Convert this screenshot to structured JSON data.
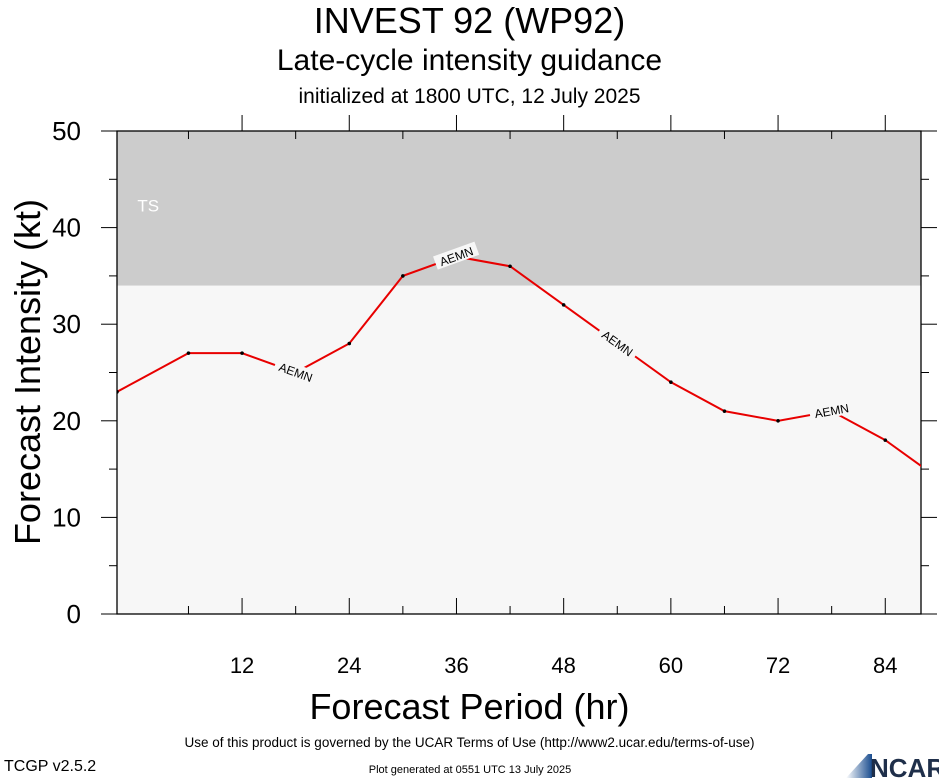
{
  "header": {
    "title": "INVEST 92 (WP92)",
    "subtitle": "Late-cycle intensity guidance",
    "initialized": "initialized at 1800 UTC, 12 July 2025"
  },
  "footer": {
    "terms": "Use of this product is governed by the UCAR Terms of Use (http://www2.ucar.edu/terms-of-use)",
    "generated": "Plot generated at 0551 UTC   13 July 2025",
    "version": "TCGP v2.5.2",
    "logo_text": "NCAR"
  },
  "colors": {
    "series": "#e80000",
    "ts_band": "#cccccc",
    "plot_bg": "#f7f7f7",
    "ts_label": "#ffffff"
  },
  "chart_data": {
    "type": "line",
    "xlabel": "Forecast Period (hr)",
    "ylabel": "Forecast Intensity (kt)",
    "xlim": [
      -2,
      88
    ],
    "ylim": [
      0,
      50
    ],
    "xticks": [
      12,
      24,
      36,
      48,
      60,
      72,
      84
    ],
    "yticks": [
      0,
      10,
      20,
      30,
      40,
      50
    ],
    "grid": false,
    "bands": [
      {
        "label": "TS",
        "from": 34,
        "to": 50
      }
    ],
    "series": [
      {
        "name": "AEMN",
        "x": [
          -2,
          6,
          12,
          18,
          24,
          30,
          36,
          42,
          48,
          54,
          60,
          66,
          72,
          78,
          84,
          90
        ],
        "y": [
          23,
          27,
          27,
          25,
          28,
          35,
          37,
          36,
          32,
          28,
          24,
          21,
          20,
          21,
          18,
          14
        ],
        "label_positions_hr": [
          18,
          36,
          54,
          78
        ]
      }
    ]
  }
}
